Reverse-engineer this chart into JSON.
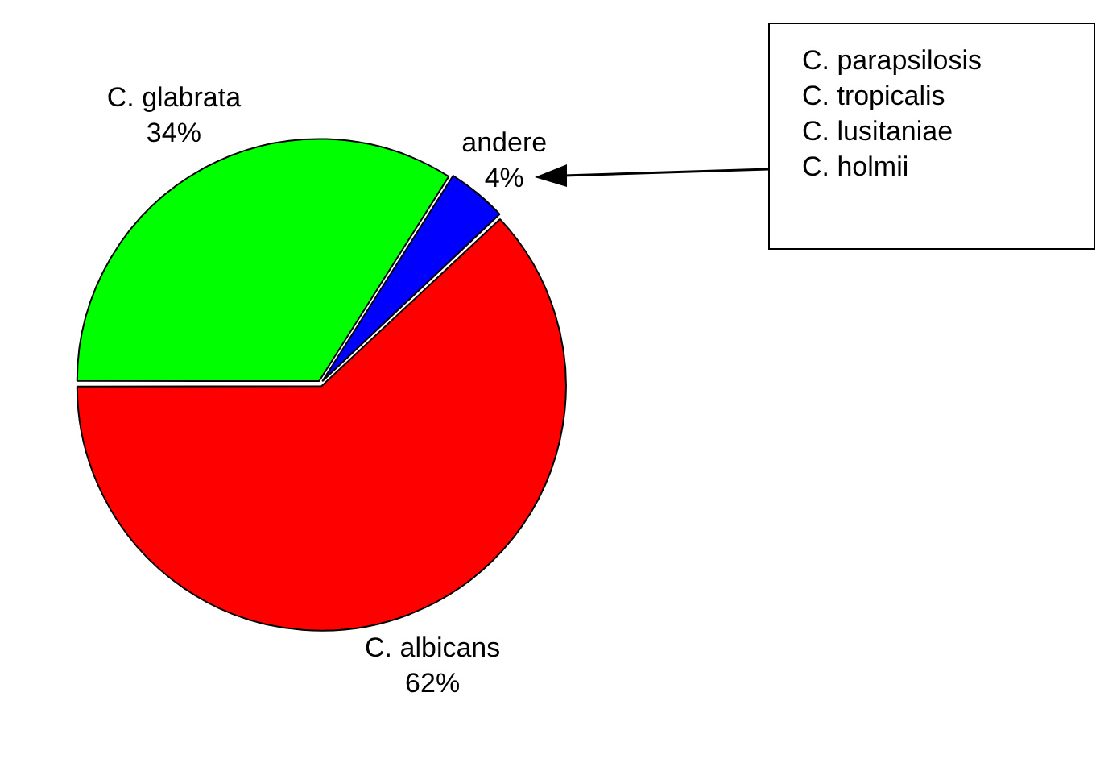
{
  "chart_data": {
    "type": "pie",
    "categories": [
      "C. glabrata",
      "andere",
      "C. albicans"
    ],
    "values": [
      34,
      4,
      62
    ],
    "value_labels": [
      "34%",
      "4%",
      "62%"
    ],
    "colors": [
      "#00ff00",
      "#0000ff",
      "#ff0000"
    ],
    "legend": false,
    "annotations": [
      "C. parapsilosis",
      "C. tropicalis",
      "C. lusitaniae",
      "C. holmii"
    ]
  }
}
